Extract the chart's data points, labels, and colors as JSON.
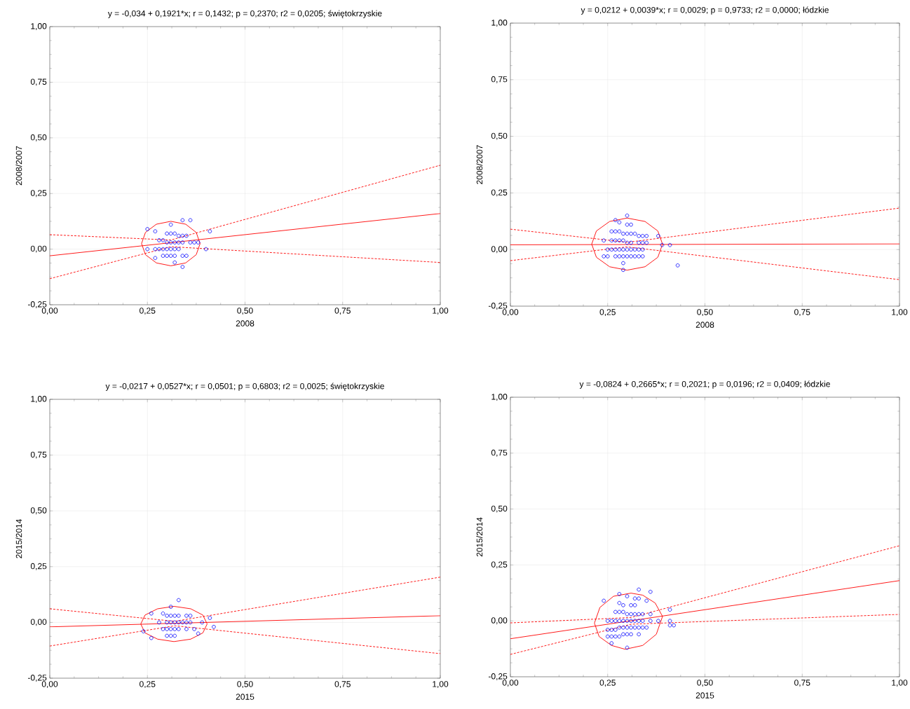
{
  "chart_data": [
    {
      "type": "scatter",
      "title": "y = -0,034 + 0,1921*x;  r = 0,1432; p = 0,2370; r2 = 0,0205; świętokrzyskie",
      "xlabel": "2008",
      "ylabel": "2008/2007",
      "xlim": [
        0,
        1
      ],
      "ylim": [
        -0.25,
        1
      ],
      "xticks": [
        {
          "value": 0,
          "label": "0,00"
        },
        {
          "value": 0.25,
          "label": "0,25"
        },
        {
          "value": 0.5,
          "label": "0,50"
        },
        {
          "value": 0.75,
          "label": "0,75"
        },
        {
          "value": 1,
          "label": "1,00"
        }
      ],
      "yticks": [
        {
          "value": -0.25,
          "label": "-0,25"
        },
        {
          "value": 0,
          "label": "0,00"
        },
        {
          "value": 0.25,
          "label": "0,25"
        },
        {
          "value": 0.5,
          "label": "0,50"
        },
        {
          "value": 0.75,
          "label": "0,75"
        },
        {
          "value": 1,
          "label": "1,00"
        }
      ],
      "grid": true,
      "legend": false,
      "series": [
        {
          "type": "scatter",
          "marker": "circle",
          "color": "#0000ff",
          "x": [
            0.25,
            0.27,
            0.31,
            0.34,
            0.36,
            0.41,
            0.3,
            0.31,
            0.32,
            0.33,
            0.34,
            0.35,
            0.28,
            0.29,
            0.3,
            0.31,
            0.32,
            0.33,
            0.34,
            0.36,
            0.37,
            0.38,
            0.25,
            0.27,
            0.28,
            0.29,
            0.3,
            0.31,
            0.32,
            0.33,
            0.4,
            0.29,
            0.3,
            0.31,
            0.32,
            0.34,
            0.35,
            0.27,
            0.32,
            0.34
          ],
          "values": [
            0.09,
            0.08,
            0.11,
            0.13,
            0.13,
            0.08,
            0.07,
            0.07,
            0.07,
            0.06,
            0.06,
            0.06,
            0.04,
            0.04,
            0.03,
            0.03,
            0.03,
            0.03,
            0.03,
            0.03,
            0.03,
            0.03,
            0,
            0,
            0,
            0,
            0,
            0,
            0,
            0,
            0,
            -0.03,
            -0.03,
            -0.03,
            -0.03,
            -0.03,
            -0.03,
            -0.04,
            -0.06,
            -0.08
          ]
        },
        {
          "type": "line",
          "line_style": "solid",
          "color": "#ff0000",
          "x": [
            0,
            1
          ],
          "values": [
            -0.03,
            0.16
          ]
        },
        {
          "type": "line",
          "line_style": "dashed",
          "color": "#ff0000",
          "x": [
            0,
            0.31,
            1
          ],
          "values": [
            0.065,
            0.041,
            0.377
          ]
        },
        {
          "type": "line",
          "line_style": "dashed",
          "color": "#ff0000",
          "x": [
            0,
            0.31,
            1
          ],
          "values": [
            -0.133,
            0.011,
            -0.06
          ]
        },
        {
          "type": "line",
          "line_style": "solid",
          "color": "#ff0000",
          "x": [
            0.235,
            0.245,
            0.273,
            0.31,
            0.348,
            0.375,
            0.385
          ],
          "values": [
            0.025,
            0.075,
            0.112,
            0.125,
            0.112,
            0.075,
            0.025
          ]
        },
        {
          "type": "line",
          "line_style": "solid",
          "color": "#ff0000",
          "x": [
            0.235,
            0.245,
            0.273,
            0.31,
            0.348,
            0.375,
            0.385
          ],
          "values": [
            0.025,
            -0.025,
            -0.062,
            -0.075,
            -0.062,
            -0.025,
            0.025
          ]
        }
      ]
    },
    {
      "type": "scatter",
      "title": "y = 0,0212 + 0,0039*x;  r = 0,0029; p = 0,9733; r2 = 0,0000; łódzkie",
      "xlabel": "2008",
      "ylabel": "2008/2007",
      "xlim": [
        0,
        1
      ],
      "ylim": [
        -0.25,
        1
      ],
      "xticks": [
        {
          "value": 0,
          "label": "0,00"
        },
        {
          "value": 0.25,
          "label": "0,25"
        },
        {
          "value": 0.5,
          "label": "0,50"
        },
        {
          "value": 0.75,
          "label": "0,75"
        },
        {
          "value": 1,
          "label": "1,00"
        }
      ],
      "yticks": [
        {
          "value": -0.25,
          "label": "-0,25"
        },
        {
          "value": 0,
          "label": "0,00"
        },
        {
          "value": 0.25,
          "label": "0,25"
        },
        {
          "value": 0.5,
          "label": "0,50"
        },
        {
          "value": 0.75,
          "label": "0,75"
        },
        {
          "value": 1,
          "label": "1,00"
        }
      ],
      "grid": true,
      "legend": false,
      "series": [
        {
          "type": "scatter",
          "marker": "circle",
          "color": "#0000ff",
          "x": [
            0.3,
            0.27,
            0.28,
            0.3,
            0.31,
            0.26,
            0.27,
            0.28,
            0.29,
            0.3,
            0.31,
            0.32,
            0.33,
            0.34,
            0.35,
            0.38,
            0.24,
            0.26,
            0.27,
            0.28,
            0.29,
            0.3,
            0.31,
            0.33,
            0.34,
            0.35,
            0.39,
            0.41,
            0.25,
            0.26,
            0.27,
            0.28,
            0.29,
            0.3,
            0.31,
            0.32,
            0.33,
            0.34,
            0.24,
            0.25,
            0.27,
            0.28,
            0.29,
            0.3,
            0.31,
            0.32,
            0.33,
            0.34,
            0.29,
            0.29,
            0.43
          ],
          "values": [
            0.15,
            0.13,
            0.12,
            0.11,
            0.11,
            0.08,
            0.08,
            0.08,
            0.07,
            0.07,
            0.07,
            0.07,
            0.06,
            0.06,
            0.06,
            0.06,
            0.04,
            0.04,
            0.04,
            0.04,
            0.04,
            0.03,
            0.03,
            0.03,
            0.03,
            0.03,
            0.02,
            0.02,
            0,
            0,
            0,
            0,
            0,
            0,
            0,
            0,
            0,
            0,
            -0.03,
            -0.03,
            -0.03,
            -0.03,
            -0.03,
            -0.03,
            -0.03,
            -0.03,
            -0.03,
            -0.03,
            -0.06,
            -0.09,
            -0.07
          ]
        },
        {
          "type": "line",
          "line_style": "solid",
          "color": "#ff0000",
          "x": [
            0,
            1
          ],
          "values": [
            0.021,
            0.025
          ]
        },
        {
          "type": "line",
          "line_style": "dashed",
          "color": "#ff0000",
          "x": [
            0,
            0.3,
            1
          ],
          "values": [
            0.09,
            0.032,
            0.183
          ]
        },
        {
          "type": "line",
          "line_style": "dashed",
          "color": "#ff0000",
          "x": [
            0,
            0.3,
            1
          ],
          "values": [
            -0.049,
            0.012,
            -0.133
          ]
        },
        {
          "type": "line",
          "line_style": "solid",
          "color": "#ff0000",
          "x": [
            0.209,
            0.221,
            0.255,
            0.3,
            0.346,
            0.379,
            0.391
          ],
          "values": [
            0.024,
            0.082,
            0.124,
            0.139,
            0.124,
            0.082,
            0.024
          ]
        },
        {
          "type": "line",
          "line_style": "solid",
          "color": "#ff0000",
          "x": [
            0.209,
            0.221,
            0.255,
            0.3,
            0.346,
            0.379,
            0.391
          ],
          "values": [
            0.024,
            -0.034,
            -0.076,
            -0.091,
            -0.076,
            -0.034,
            0.024
          ]
        }
      ]
    },
    {
      "type": "scatter",
      "title": "y = -0,0217 + 0,0527*x; r = 0,0501; p = 0,6803; r2 = 0,0025; świętokrzyskie",
      "xlabel": "2015",
      "ylabel": "2015/2014",
      "xlim": [
        0,
        1
      ],
      "ylim": [
        -0.25,
        1
      ],
      "xticks": [
        {
          "value": 0,
          "label": "0,00"
        },
        {
          "value": 0.25,
          "label": "0,25"
        },
        {
          "value": 0.5,
          "label": "0,50"
        },
        {
          "value": 0.75,
          "label": "0,75"
        },
        {
          "value": 1,
          "label": "1,00"
        }
      ],
      "yticks": [
        {
          "value": -0.25,
          "label": "-0,25"
        },
        {
          "value": 0,
          "label": "0,00"
        },
        {
          "value": 0.25,
          "label": "0,25"
        },
        {
          "value": 0.5,
          "label": "0,50"
        },
        {
          "value": 0.75,
          "label": "0,75"
        },
        {
          "value": 1,
          "label": "1,00"
        }
      ],
      "grid": true,
      "legend": false,
      "series": [
        {
          "type": "scatter",
          "marker": "circle",
          "color": "#0000ff",
          "x": [
            0.33,
            0.31,
            0.26,
            0.29,
            0.3,
            0.31,
            0.32,
            0.33,
            0.35,
            0.36,
            0.41,
            0.28,
            0.3,
            0.31,
            0.32,
            0.33,
            0.34,
            0.35,
            0.36,
            0.39,
            0.42,
            0.29,
            0.3,
            0.31,
            0.32,
            0.33,
            0.35,
            0.37,
            0.24,
            0.38,
            0.3,
            0.31,
            0.32,
            0.26
          ],
          "values": [
            0.1,
            0.07,
            0.04,
            0.04,
            0.03,
            0.03,
            0.03,
            0.03,
            0.03,
            0.03,
            0.02,
            0,
            0,
            0,
            0,
            0,
            0,
            0,
            0,
            0,
            -0.02,
            -0.03,
            -0.03,
            -0.03,
            -0.03,
            -0.03,
            -0.03,
            -0.03,
            -0.04,
            -0.05,
            -0.06,
            -0.06,
            -0.06,
            -0.07
          ]
        },
        {
          "type": "line",
          "line_style": "solid",
          "color": "#ff0000",
          "x": [
            0,
            1
          ],
          "values": [
            -0.02,
            0.03
          ]
        },
        {
          "type": "line",
          "line_style": "dashed",
          "color": "#ff0000",
          "x": [
            0,
            0.32,
            1
          ],
          "values": [
            0.061,
            0.005,
            0.203
          ]
        },
        {
          "type": "line",
          "line_style": "dashed",
          "color": "#ff0000",
          "x": [
            0,
            0.32,
            1
          ],
          "values": [
            -0.106,
            -0.015,
            -0.14
          ]
        },
        {
          "type": "line",
          "line_style": "solid",
          "color": "#ff0000",
          "x": [
            0.233,
            0.244,
            0.276,
            0.318,
            0.361,
            0.392,
            0.403
          ],
          "values": [
            -0.007,
            0.033,
            0.061,
            0.072,
            0.061,
            0.033,
            -0.007
          ]
        },
        {
          "type": "line",
          "line_style": "solid",
          "color": "#ff0000",
          "x": [
            0.233,
            0.244,
            0.276,
            0.318,
            0.361,
            0.392,
            0.403
          ],
          "values": [
            -0.007,
            -0.047,
            -0.075,
            -0.086,
            -0.075,
            -0.047,
            -0.007
          ]
        }
      ]
    },
    {
      "type": "scatter",
      "title": "y = -0,0824 + 0,2665*x; r = 0,2021; p = 0,0196; r2 = 0,0409; łódzkie",
      "xlabel": "2015",
      "ylabel": "2015/2014",
      "xlim": [
        0,
        1
      ],
      "ylim": [
        -0.25,
        1
      ],
      "xticks": [
        {
          "value": 0,
          "label": "0,00"
        },
        {
          "value": 0.25,
          "label": "0,25"
        },
        {
          "value": 0.5,
          "label": "0,50"
        },
        {
          "value": 0.75,
          "label": "0,75"
        },
        {
          "value": 1,
          "label": "1,00"
        }
      ],
      "yticks": [
        {
          "value": -0.25,
          "label": "-0,25"
        },
        {
          "value": 0,
          "label": "0,00"
        },
        {
          "value": 0.25,
          "label": "0,25"
        },
        {
          "value": 0.5,
          "label": "0,50"
        },
        {
          "value": 0.75,
          "label": "0,75"
        },
        {
          "value": 1,
          "label": "1,00"
        }
      ],
      "grid": true,
      "legend": false,
      "series": [
        {
          "type": "scatter",
          "marker": "circle",
          "color": "#0000ff",
          "x": [
            0.24,
            0.28,
            0.3,
            0.33,
            0.36,
            0.32,
            0.33,
            0.35,
            0.28,
            0.29,
            0.31,
            0.32,
            0.27,
            0.28,
            0.29,
            0.41,
            0.3,
            0.31,
            0.32,
            0.33,
            0.34,
            0.36,
            0.25,
            0.26,
            0.27,
            0.28,
            0.29,
            0.3,
            0.31,
            0.32,
            0.33,
            0.34,
            0.36,
            0.38,
            0.41,
            0.41,
            0.42,
            0.28,
            0.29,
            0.3,
            0.31,
            0.32,
            0.33,
            0.34,
            0.35,
            0.25,
            0.26,
            0.27,
            0.29,
            0.3,
            0.31,
            0.33,
            0.25,
            0.26,
            0.27,
            0.28,
            0.26,
            0.3
          ],
          "values": [
            0.09,
            0.12,
            0.11,
            0.14,
            0.13,
            0.1,
            0.1,
            0.09,
            0.08,
            0.07,
            0.07,
            0.07,
            0.04,
            0.04,
            0.04,
            0.05,
            0.03,
            0.03,
            0.03,
            0.03,
            0.03,
            0.03,
            0,
            0,
            0,
            0,
            0,
            0,
            0,
            0,
            0,
            0,
            0,
            0,
            0,
            -0.02,
            -0.02,
            -0.03,
            -0.03,
            -0.03,
            -0.03,
            -0.03,
            -0.03,
            -0.03,
            -0.03,
            -0.04,
            -0.04,
            -0.04,
            -0.06,
            -0.06,
            -0.06,
            -0.06,
            -0.07,
            -0.07,
            -0.07,
            -0.07,
            -0.1,
            -0.12
          ]
        },
        {
          "type": "line",
          "line_style": "solid",
          "color": "#ff0000",
          "x": [
            0,
            1
          ],
          "values": [
            -0.08,
            0.18
          ]
        },
        {
          "type": "line",
          "line_style": "dashed",
          "color": "#ff0000",
          "x": [
            0,
            0.31,
            1
          ],
          "values": [
            -0.009,
            0.015,
            0.336
          ]
        },
        {
          "type": "line",
          "line_style": "dashed",
          "color": "#ff0000",
          "x": [
            0,
            0.31,
            1
          ],
          "values": [
            -0.15,
            -0.015,
            0.029
          ]
        },
        {
          "type": "line",
          "line_style": "solid",
          "color": "#ff0000",
          "x": [
            0.216,
            0.23,
            0.265,
            0.31,
            0.34,
            0.372,
            0.391
          ],
          "values": [
            -0.01,
            0.06,
            0.11,
            0.124,
            0.115,
            0.08,
            0.02
          ]
        },
        {
          "type": "line",
          "line_style": "solid",
          "color": "#ff0000",
          "x": [
            0.216,
            0.228,
            0.26,
            0.295,
            0.34,
            0.375,
            0.391
          ],
          "values": [
            -0.01,
            -0.07,
            -0.11,
            -0.127,
            -0.11,
            -0.06,
            0.02
          ]
        }
      ]
    }
  ]
}
